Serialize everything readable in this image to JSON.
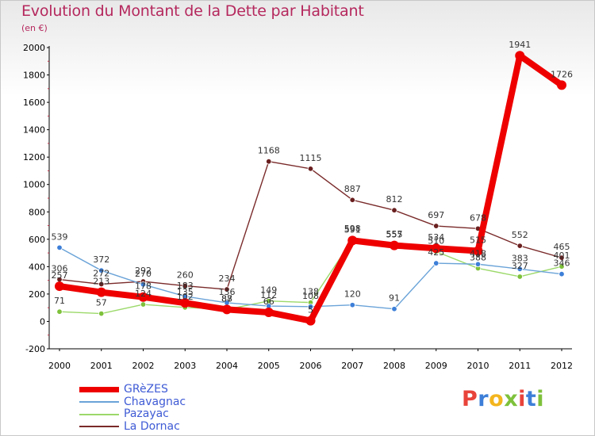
{
  "header": {
    "title": "Evolution du Montant de la Dette par Habitant",
    "subtitle": "(en €)"
  },
  "colors": {
    "title": "#b5285d",
    "legend_text": "#3f5bd5",
    "axis": "#000000",
    "gridline": "#cccccc"
  },
  "logo": {
    "text": "Proxiti",
    "letter_colors": [
      "#e8433a",
      "#3d7fd8",
      "#f3b51e",
      "#7ec13b",
      "#e8433a",
      "#3d7fd8",
      "#7ec13b"
    ]
  },
  "chart_data": {
    "type": "line",
    "title": "Evolution du Montant de la Dette par Habitant",
    "ylabel": "(en €)",
    "xlabel": "",
    "x": [
      "2000",
      "2001",
      "2002",
      "2003",
      "2004",
      "2005",
      "2006",
      "2007",
      "2008",
      "2009",
      "2010",
      "2011",
      "2012"
    ],
    "ylim": [
      -200,
      2000
    ],
    "yticks": [
      -200,
      0,
      200,
      400,
      600,
      800,
      1000,
      1200,
      1400,
      1600,
      1800,
      2000
    ],
    "grid": false,
    "legend_position": "bottom-left",
    "series": [
      {
        "name": "GRèZES",
        "color": "#ee0000",
        "marker_color": "#ee0000",
        "width": 8,
        "values": [
          257,
          213,
          178,
          135,
          87,
          66,
          5,
          591,
          555,
          534,
          515,
          1941,
          1726
        ]
      },
      {
        "name": "Chavagnac",
        "color": "#6aa3d8",
        "marker_color": "#3d7fd8",
        "width": 1.4,
        "values": [
          539,
          372,
          270,
          183,
          136,
          112,
          108,
          120,
          91,
          425,
          418,
          383,
          346
        ]
      },
      {
        "name": "Pazayac",
        "color": "#9cd96a",
        "marker_color": "#7ec13b",
        "width": 1.4,
        "values": [
          71,
          57,
          124,
          102,
          88,
          149,
          138,
          598,
          557,
          510,
          388,
          327,
          401
        ]
      },
      {
        "name": "La Dornac",
        "color": "#7a2a2a",
        "marker_color": "#6a1f1f",
        "width": 1.4,
        "values": [
          306,
          272,
          292,
          260,
          234,
          1168,
          1115,
          887,
          812,
          697,
          678,
          552,
          465
        ]
      }
    ]
  }
}
